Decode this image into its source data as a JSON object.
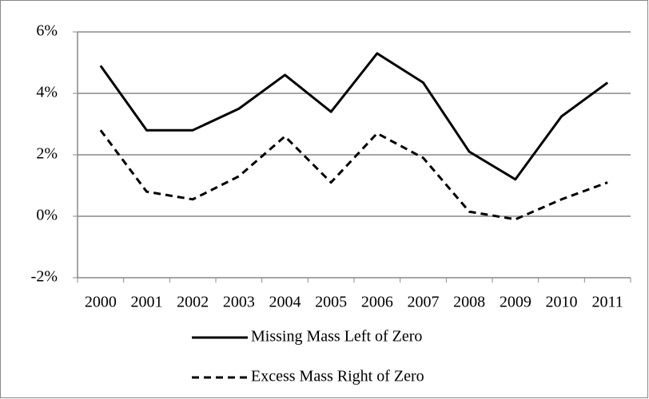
{
  "chart_data": {
    "type": "line",
    "categories": [
      "2000",
      "2001",
      "2002",
      "2003",
      "2004",
      "2005",
      "2006",
      "2007",
      "2008",
      "2009",
      "2010",
      "2011"
    ],
    "series": [
      {
        "name": "Missing Mass Left of Zero",
        "color": "#000000",
        "dash": "solid",
        "values": [
          4.9,
          2.8,
          2.8,
          3.5,
          4.6,
          3.4,
          5.3,
          4.35,
          2.1,
          1.2,
          3.25,
          4.35
        ]
      },
      {
        "name": "Excess Mass Right of Zero",
        "color": "#000000",
        "dash": "dashed",
        "values": [
          2.8,
          0.8,
          0.55,
          1.3,
          2.6,
          1.1,
          2.7,
          1.9,
          0.15,
          -0.1,
          0.55,
          1.1
        ]
      }
    ],
    "ylim": [
      -2,
      6
    ],
    "yticks": [
      {
        "value": -2,
        "label": "-2%"
      },
      {
        "value": 0,
        "label": "0%"
      },
      {
        "value": 2,
        "label": "2%"
      },
      {
        "value": 4,
        "label": "4%"
      },
      {
        "value": 6,
        "label": "6%"
      }
    ],
    "grid": true,
    "legend": "bottom"
  }
}
